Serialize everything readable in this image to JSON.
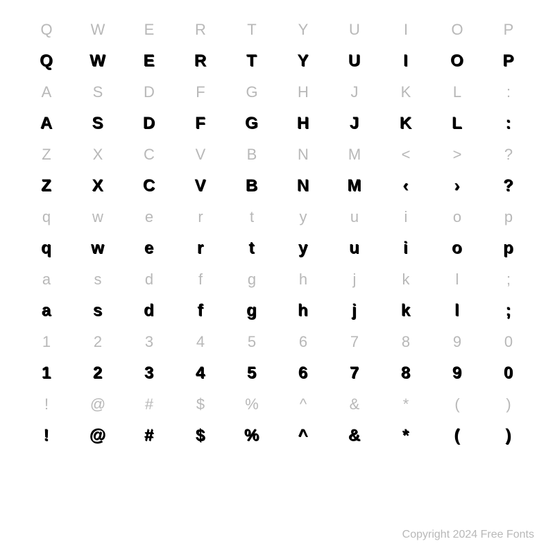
{
  "rows": [
    {
      "type": "ref",
      "cells": [
        "Q",
        "W",
        "E",
        "R",
        "T",
        "Y",
        "U",
        "I",
        "O",
        "P"
      ]
    },
    {
      "type": "glyph",
      "cells": [
        "Q",
        "W",
        "E",
        "R",
        "T",
        "Y",
        "U",
        "I",
        "O",
        "P"
      ]
    },
    {
      "type": "ref",
      "cells": [
        "A",
        "S",
        "D",
        "F",
        "G",
        "H",
        "J",
        "K",
        "L",
        ":"
      ]
    },
    {
      "type": "glyph",
      "cells": [
        "A",
        "S",
        "D",
        "F",
        "G",
        "H",
        "J",
        "K",
        "L",
        ":"
      ]
    },
    {
      "type": "ref",
      "cells": [
        "Z",
        "X",
        "C",
        "V",
        "B",
        "N",
        "M",
        "<",
        ">",
        "?"
      ]
    },
    {
      "type": "glyph",
      "cells": [
        "Z",
        "X",
        "C",
        "V",
        "B",
        "N",
        "M",
        "‹",
        "›",
        "?"
      ]
    },
    {
      "type": "ref",
      "cells": [
        "q",
        "w",
        "e",
        "r",
        "t",
        "y",
        "u",
        "i",
        "o",
        "p"
      ]
    },
    {
      "type": "glyph",
      "cells": [
        "q",
        "w",
        "e",
        "r",
        "t",
        "y",
        "u",
        "i",
        "o",
        "p"
      ]
    },
    {
      "type": "ref",
      "cells": [
        "a",
        "s",
        "d",
        "f",
        "g",
        "h",
        "j",
        "k",
        "l",
        ";"
      ]
    },
    {
      "type": "glyph",
      "cells": [
        "a",
        "s",
        "d",
        "f",
        "g",
        "h",
        "j",
        "k",
        "l",
        ";"
      ]
    },
    {
      "type": "ref",
      "cells": [
        "1",
        "2",
        "3",
        "4",
        "5",
        "6",
        "7",
        "8",
        "9",
        "0"
      ]
    },
    {
      "type": "glyph",
      "cells": [
        "1",
        "2",
        "3",
        "4",
        "5",
        "6",
        "7",
        "8",
        "9",
        "0"
      ]
    },
    {
      "type": "ref",
      "cells": [
        "!",
        "@",
        "#",
        "$",
        "%",
        "^",
        "&",
        "*",
        "(",
        ")"
      ]
    },
    {
      "type": "glyph",
      "cells": [
        "!",
        "@",
        "#",
        "$",
        "%",
        "^",
        "&",
        "*",
        "(",
        ")"
      ]
    }
  ],
  "copyright": "Copyright 2024 Free Fonts",
  "colors": {
    "background": "#ffffff",
    "ref_text": "#b8b8b8",
    "glyph_text": "#000000",
    "copyright_text": "#b8b8b8"
  },
  "layout": {
    "columns": 10,
    "row_pairs": 7,
    "ref_fontsize": 22,
    "glyph_fontsize": 24,
    "copyright_fontsize": 16
  }
}
